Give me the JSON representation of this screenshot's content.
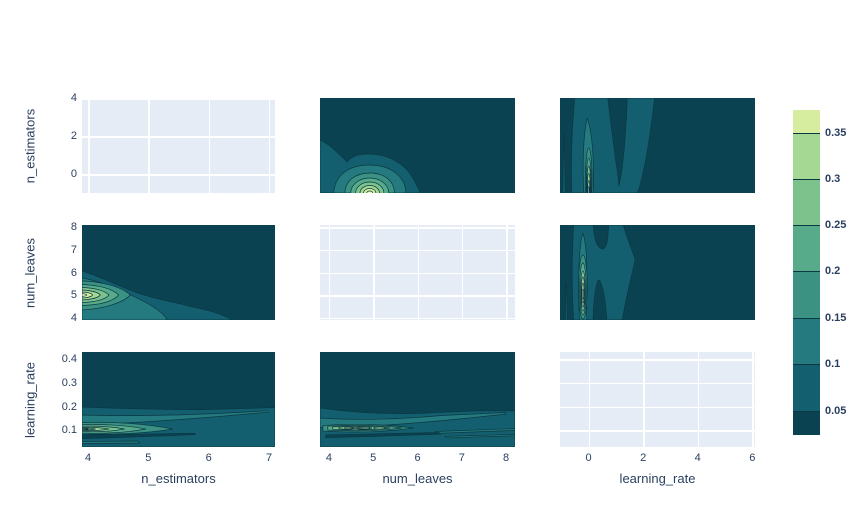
{
  "axes": {
    "x_titles": [
      "n_estimators",
      "num_leaves",
      "learning_rate"
    ],
    "y_titles": [
      "n_estimators",
      "num_leaves",
      "learning_rate"
    ]
  },
  "colorbar": {
    "tick_labels": [
      "0.35",
      "0.3",
      "0.25",
      "0.2",
      "0.15",
      "0.1",
      "0.05"
    ]
  },
  "chart_data": {
    "type": "heatmap",
    "subtype": "filled-contour density scatter-matrix of hyperparameters",
    "variables": [
      "n_estimators",
      "num_leaves",
      "learning_rate"
    ],
    "contour_levels": [
      0.05,
      0.1,
      0.15,
      0.2,
      0.25,
      0.3,
      0.35
    ],
    "colorscale_bands": [
      "#0b4251",
      "#145f6f",
      "#247a7e",
      "#3b9283",
      "#58ab8a",
      "#7dc28c",
      "#a5d893",
      "#d6ed9f"
    ],
    "peak_highlight_color": "#edf6c4",
    "peak_core_olive_color": "#b2b275",
    "contour_line_color": "#0a3844",
    "diagonal_bg": "#e5ecf6",
    "grid_color": "#ffffff",
    "text_color": "#2a3f5f",
    "columns": [
      {
        "var": "n_estimators",
        "range": [
          3.9,
          7.1
        ],
        "tick_values": [
          4,
          5,
          6,
          7
        ],
        "tick_labels": [
          "4",
          "5",
          "6",
          "7"
        ]
      },
      {
        "var": "num_leaves",
        "range": [
          3.8,
          8.2
        ],
        "tick_values": [
          4,
          5,
          6,
          7,
          8
        ],
        "tick_labels": [
          "4",
          "5",
          "6",
          "7",
          "8"
        ]
      },
      {
        "var": "learning_rate",
        "range": [
          -1.05,
          6.1
        ],
        "tick_values": [
          0,
          2,
          4,
          6
        ],
        "tick_labels": [
          "0",
          "2",
          "4",
          "6"
        ]
      }
    ],
    "rows": [
      {
        "var": "n_estimators",
        "range": [
          -1,
          4
        ],
        "tick_values": [
          4,
          2,
          0
        ],
        "tick_labels": [
          "4",
          "2",
          "0"
        ]
      },
      {
        "var": "num_leaves",
        "range": [
          3.9,
          8.1
        ],
        "tick_values": [
          8,
          7,
          6,
          5,
          4
        ],
        "tick_labels": [
          "8",
          "7",
          "6",
          "5",
          "4"
        ]
      },
      {
        "var": "learning_rate",
        "range": [
          0.03,
          0.43
        ],
        "tick_values": [
          0.4,
          0.3,
          0.2,
          0.1
        ],
        "tick_labels": [
          "0.4",
          "0.3",
          "0.2",
          "0.1"
        ]
      }
    ],
    "panels": [
      {
        "row": 0,
        "col": 0,
        "x_var": "n_estimators",
        "y_var": "n_estimators",
        "kind": "empty-grid"
      },
      {
        "row": 0,
        "col": 1,
        "x_var": "num_leaves",
        "y_var": "n_estimators",
        "kind": "contour",
        "peak": {
          "x": 5,
          "y": -0.5,
          "max_band": "> 0.35"
        }
      },
      {
        "row": 0,
        "col": 2,
        "x_var": "learning_rate",
        "y_var": "n_estimators",
        "kind": "contour",
        "peak": {
          "x": 0,
          "y": -0.5,
          "max_band": "> 0.35"
        }
      },
      {
        "row": 1,
        "col": 0,
        "x_var": "n_estimators",
        "y_var": "num_leaves",
        "kind": "contour",
        "peak": {
          "x": 4,
          "y": 5,
          "max_band": "> 0.35"
        }
      },
      {
        "row": 1,
        "col": 1,
        "x_var": "num_leaves",
        "y_var": "num_leaves",
        "kind": "empty-grid"
      },
      {
        "row": 1,
        "col": 2,
        "x_var": "learning_rate",
        "y_var": "num_leaves",
        "kind": "contour",
        "peak": {
          "x": 0,
          "y": 5,
          "max_band": "> 0.35"
        }
      },
      {
        "row": 2,
        "col": 0,
        "x_var": "n_estimators",
        "y_var": "learning_rate",
        "kind": "contour",
        "peak": {
          "x": 4,
          "y": 0.08,
          "max_band": "> 0.35"
        }
      },
      {
        "row": 2,
        "col": 1,
        "x_var": "num_leaves",
        "y_var": "learning_rate",
        "kind": "contour",
        "peak": {
          "x": 5,
          "y": 0.08,
          "max_band": "> 0.35"
        }
      },
      {
        "row": 2,
        "col": 2,
        "x_var": "learning_rate",
        "y_var": "learning_rate",
        "kind": "empty-grid"
      }
    ]
  }
}
